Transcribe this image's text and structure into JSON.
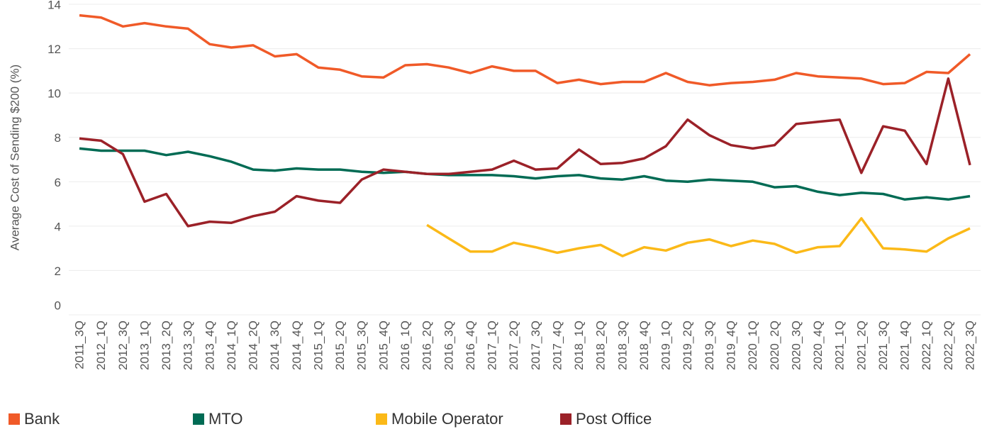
{
  "chart_data": {
    "type": "line",
    "y_label": "Average Cost of Sending $200 (%)",
    "categories": [
      "2011_3Q",
      "2012_1Q",
      "2012_3Q",
      "2013_1Q",
      "2013_2Q",
      "2013_3Q",
      "2013_4Q",
      "2014_1Q",
      "2014_2Q",
      "2014_3Q",
      "2014_4Q",
      "2015_1Q",
      "2015_2Q",
      "2015_3Q",
      "2015_4Q",
      "2016_1Q",
      "2016_2Q",
      "2016_3Q",
      "2016_4Q",
      "2017_1Q",
      "2017_2Q",
      "2017_3Q",
      "2017_4Q",
      "2018_1Q",
      "2018_2Q",
      "2018_3Q",
      "2018_4Q",
      "2019_1Q",
      "2019_2Q",
      "2019_3Q",
      "2019_4Q",
      "2020_1Q",
      "2020_2Q",
      "2020_3Q",
      "2020_4Q",
      "2021_1Q",
      "2021_2Q",
      "2021_3Q",
      "2021_4Q",
      "2022_1Q",
      "2022_2Q",
      "2022_3Q"
    ],
    "series": [
      {
        "name": "Bank",
        "color": "#f05a28",
        "values": [
          13.5,
          13.4,
          13.0,
          13.15,
          13.0,
          12.9,
          12.2,
          12.05,
          12.15,
          11.65,
          11.75,
          11.15,
          11.05,
          10.75,
          10.7,
          11.25,
          11.3,
          11.15,
          10.9,
          11.2,
          11.0,
          11.0,
          10.45,
          10.6,
          10.4,
          10.5,
          10.5,
          10.9,
          10.5,
          10.35,
          10.45,
          10.5,
          10.6,
          10.9,
          10.75,
          10.7,
          10.65,
          10.4,
          10.45,
          10.95,
          10.9,
          11.75
        ]
      },
      {
        "name": "MTO",
        "color": "#006b54",
        "values": [
          7.5,
          7.4,
          7.4,
          7.4,
          7.2,
          7.35,
          7.15,
          6.9,
          6.55,
          6.5,
          6.6,
          6.55,
          6.55,
          6.45,
          6.4,
          6.45,
          6.35,
          6.3,
          6.3,
          6.3,
          6.25,
          6.15,
          6.25,
          6.3,
          6.15,
          6.1,
          6.25,
          6.05,
          6.0,
          6.1,
          6.05,
          6.0,
          5.75,
          5.8,
          5.55,
          5.4,
          5.5,
          5.45,
          5.2,
          5.3,
          5.2,
          5.35
        ]
      },
      {
        "name": "Mobile Operator",
        "color": "#fbb918",
        "values": [
          null,
          null,
          null,
          null,
          null,
          null,
          null,
          null,
          null,
          null,
          null,
          null,
          null,
          null,
          null,
          null,
          4.05,
          3.45,
          2.85,
          2.85,
          3.25,
          3.05,
          2.8,
          3.0,
          3.15,
          2.65,
          3.05,
          2.9,
          3.25,
          3.4,
          3.1,
          3.35,
          3.2,
          2.8,
          3.05,
          3.1,
          4.35,
          3.0,
          2.95,
          2.85,
          3.45,
          3.9
        ]
      },
      {
        "name": "Post Office",
        "color": "#9b2128",
        "values": [
          7.95,
          7.85,
          7.25,
          5.1,
          5.45,
          4.0,
          4.2,
          4.15,
          4.45,
          4.65,
          5.35,
          5.15,
          5.05,
          6.1,
          6.55,
          6.45,
          6.35,
          6.35,
          6.45,
          6.55,
          6.95,
          6.55,
          6.6,
          7.45,
          6.8,
          6.85,
          7.05,
          7.6,
          8.8,
          8.1,
          7.65,
          7.5,
          7.65,
          8.6,
          8.7,
          8.8,
          6.4,
          8.5,
          8.3,
          6.8,
          10.65,
          6.75
        ]
      }
    ],
    "ylim": [
      0,
      14
    ],
    "yticks": [
      0,
      2,
      4,
      6,
      8,
      10,
      12,
      14
    ],
    "grid": true
  }
}
